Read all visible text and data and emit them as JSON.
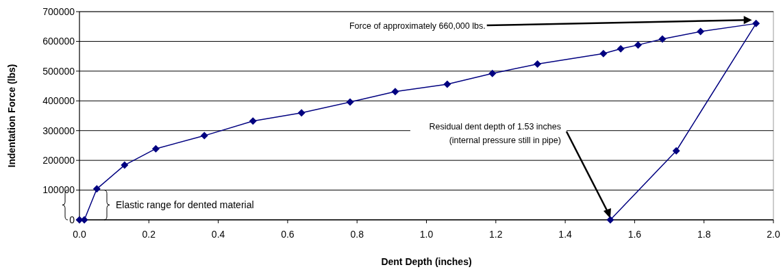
{
  "chart_data": {
    "type": "line",
    "xlabel": "Dent Depth (inches)",
    "ylabel": "Indentation Force (lbs)",
    "series": [
      {
        "color": "#000080",
        "x": [
          0,
          0.014,
          0.05,
          0.13,
          0.22,
          0.36,
          0.5,
          0.64,
          0.78,
          0.91,
          1.06,
          1.19,
          1.32,
          1.51,
          1.56,
          1.61,
          1.68,
          1.79,
          1.95,
          1.72,
          1.53
        ],
        "values": [
          0,
          0,
          104000,
          184000,
          239000,
          283000,
          332000,
          360000,
          396000,
          431000,
          456000,
          492000,
          524000,
          559000,
          575000,
          588000,
          608000,
          633000,
          660000,
          232000,
          0
        ]
      }
    ],
    "xlim": [
      0,
      2
    ],
    "xticks": [
      {
        "value": 0,
        "label": "0.0"
      },
      {
        "value": 0.2,
        "label": "0.2"
      },
      {
        "value": 0.4,
        "label": "0.4"
      },
      {
        "value": 0.6,
        "label": "0.6"
      },
      {
        "value": 0.8,
        "label": "0.8"
      },
      {
        "value": 1,
        "label": "1.0"
      },
      {
        "value": 1.2,
        "label": "1.2"
      },
      {
        "value": 1.4,
        "label": "1.4"
      },
      {
        "value": 1.6,
        "label": "1.6"
      },
      {
        "value": 1.8,
        "label": "1.8"
      },
      {
        "value": 2,
        "label": "2.0"
      }
    ],
    "ylim": [
      0,
      700000
    ],
    "yticks": [
      0,
      100000,
      200000,
      300000,
      400000,
      500000,
      600000,
      700000
    ],
    "grid": "y",
    "marker": "diamond",
    "line_style": "solid",
    "annotations": [
      "Force of approximately 660,000 lbs.",
      "Residual dent depth of 1.53 inches\n(internal pressure still in pipe)",
      "Elastic range for dented material"
    ]
  }
}
